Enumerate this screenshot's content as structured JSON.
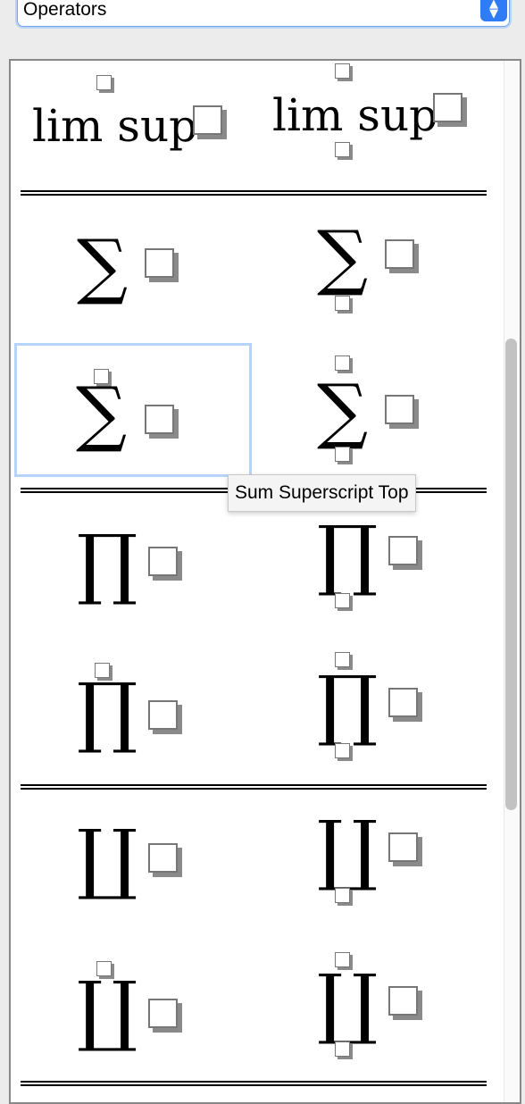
{
  "category_select": {
    "selected": "Operators"
  },
  "glyphs": {
    "limsup": "lim sup",
    "sum": "∑",
    "prod": "∏",
    "coprod": "∐"
  },
  "tooltip": {
    "text": "Sum Superscript Top"
  },
  "templates": [
    {
      "name": "lim-sup-over"
    },
    {
      "name": "lim-sup-under-over"
    },
    {
      "name": "sum-subscript"
    },
    {
      "name": "sum-subscript-bottom"
    },
    {
      "name": "sum-superscript-top"
    },
    {
      "name": "sum-under-over"
    },
    {
      "name": "product"
    },
    {
      "name": "product-subscript-bottom"
    },
    {
      "name": "product-superscript-top"
    },
    {
      "name": "product-under-over"
    },
    {
      "name": "coproduct"
    },
    {
      "name": "coproduct-subscript-bottom"
    },
    {
      "name": "coproduct-superscript-top"
    },
    {
      "name": "coproduct-under-over"
    }
  ]
}
